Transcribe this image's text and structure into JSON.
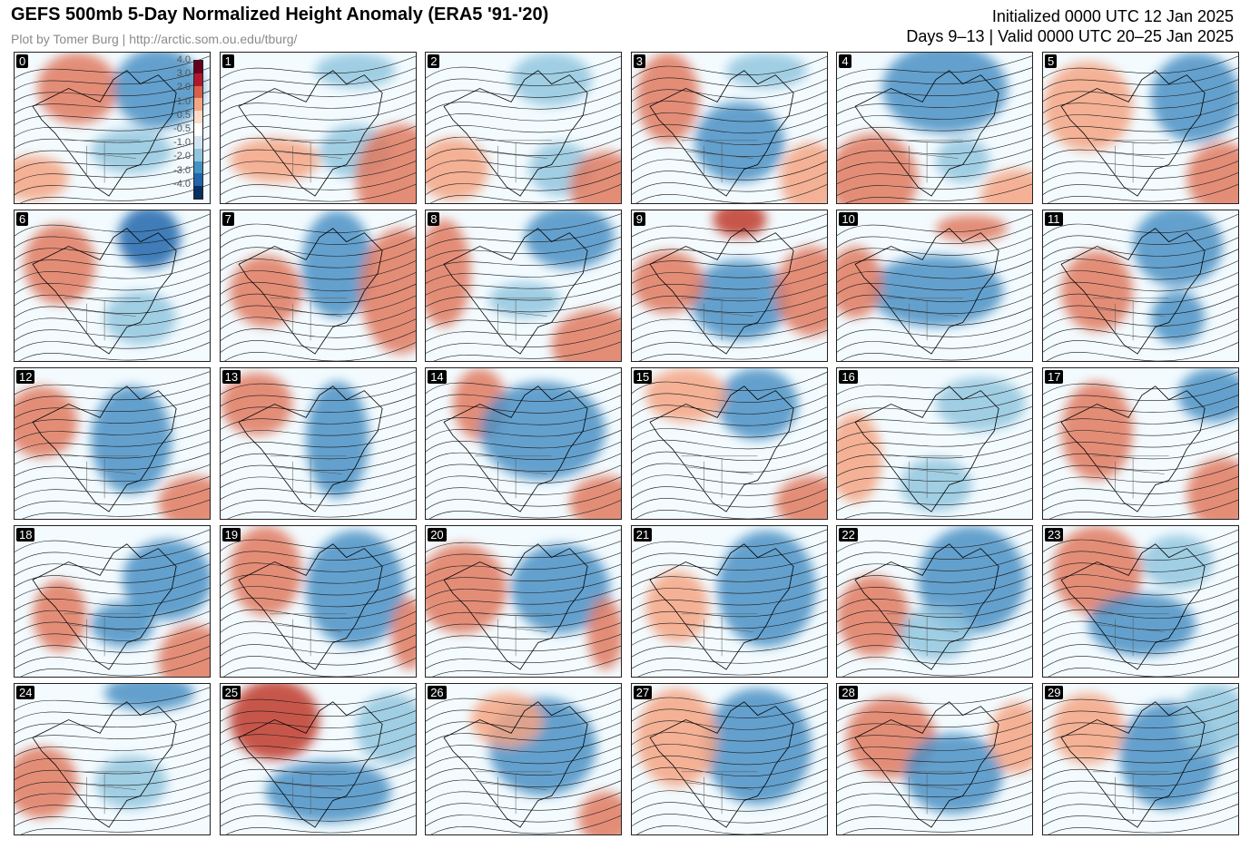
{
  "header": {
    "title": "GEFS 500mb 5-Day Normalized Height Anomaly (ERA5 '91-'20)",
    "credit": "Plot by Tomer Burg | http://arctic.som.ou.edu/tburg/",
    "initialized": "Initialized 0000 UTC 12 Jan 2025",
    "valid": "Days 9–13 | Valid 0000 UTC 20–25 Jan 2025"
  },
  "colorbar": {
    "labels": [
      "4.0",
      "3.0",
      "2.0",
      "1.0",
      "0.5",
      "-0.5",
      "-1.0",
      "-2.0",
      "-3.0",
      "-4.0"
    ],
    "colors": [
      "#67001f",
      "#b2182b",
      "#d6604d",
      "#f4a582",
      "#fddbc7",
      "#ffffff",
      "#d1e5f0",
      "#92c5de",
      "#4393c3",
      "#2166ac",
      "#053061"
    ]
  },
  "panels": [
    {
      "label": "0"
    },
    {
      "label": "1"
    },
    {
      "label": "2"
    },
    {
      "label": "3"
    },
    {
      "label": "4"
    },
    {
      "label": "5"
    },
    {
      "label": "6"
    },
    {
      "label": "7"
    },
    {
      "label": "8"
    },
    {
      "label": "9"
    },
    {
      "label": "10"
    },
    {
      "label": "11"
    },
    {
      "label": "12"
    },
    {
      "label": "13"
    },
    {
      "label": "14"
    },
    {
      "label": "15"
    },
    {
      "label": "16"
    },
    {
      "label": "17"
    },
    {
      "label": "18"
    },
    {
      "label": "19"
    },
    {
      "label": "20"
    },
    {
      "label": "21"
    },
    {
      "label": "22"
    },
    {
      "label": "23"
    },
    {
      "label": "24"
    },
    {
      "label": "25"
    },
    {
      "label": "26"
    },
    {
      "label": "27"
    },
    {
      "label": "28"
    },
    {
      "label": "29"
    }
  ]
}
